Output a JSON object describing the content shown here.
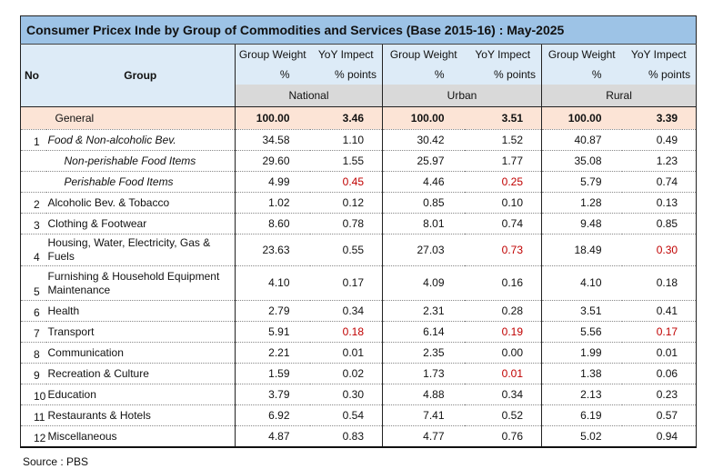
{
  "title": "Consumer Pricex Inde by Group of Commodities and Services  (Base 2015-16) : May-2025",
  "headers": {
    "no": "No",
    "group": "Group",
    "weight_top": "Group Weight",
    "weight_bottom": "%",
    "yoy_top": "YoY Impect",
    "yoy_bottom": "% points",
    "regions": [
      "National",
      "Urban",
      "Rural"
    ]
  },
  "colors": {
    "title_bg": "#9dc3e6",
    "header_bg": "#ddebf7",
    "general_bg": "#fce4d6",
    "negative_text": "#c00000"
  },
  "rows": [
    {
      "no": "",
      "group": "General",
      "style": "general",
      "values": [
        "100.00",
        "3.46",
        "100.00",
        "3.51",
        "100.00",
        "3.39"
      ],
      "red": []
    },
    {
      "no": "1",
      "group": "Food & Non-alcoholic Bev.",
      "style": "italic",
      "values": [
        "34.58",
        "1.10",
        "30.42",
        "1.52",
        "40.87",
        "0.49"
      ],
      "red": []
    },
    {
      "no": "",
      "group": "Non-perishable Food Items",
      "style": "sub",
      "values": [
        "29.60",
        "1.55",
        "25.97",
        "1.77",
        "35.08",
        "1.23"
      ],
      "red": []
    },
    {
      "no": "",
      "group": "Perishable Food Items",
      "style": "sub",
      "values": [
        "4.99",
        "0.45",
        "4.46",
        "0.25",
        "5.79",
        "0.74"
      ],
      "red": [
        1,
        3
      ]
    },
    {
      "no": "2",
      "group": "Alcoholic Bev. & Tobacco",
      "style": "",
      "values": [
        "1.02",
        "0.12",
        "0.85",
        "0.10",
        "1.28",
        "0.13"
      ],
      "red": []
    },
    {
      "no": "3",
      "group": "Clothing & Footwear",
      "style": "",
      "values": [
        "8.60",
        "0.78",
        "8.01",
        "0.74",
        "9.48",
        "0.85"
      ],
      "red": []
    },
    {
      "no": "4",
      "group": "Housing, Water, Electricity, Gas & Fuels",
      "style": "tall",
      "values": [
        "23.63",
        "0.55",
        "27.03",
        "0.73",
        "18.49",
        "0.30"
      ],
      "red": [
        3,
        5
      ]
    },
    {
      "no": "5",
      "group": "Furnishing & Household Equipment Maintenance",
      "style": "taller",
      "values": [
        "4.10",
        "0.17",
        "4.09",
        "0.16",
        "4.10",
        "0.18"
      ],
      "red": []
    },
    {
      "no": "6",
      "group": "Health",
      "style": "",
      "values": [
        "2.79",
        "0.34",
        "2.31",
        "0.28",
        "3.51",
        "0.41"
      ],
      "red": []
    },
    {
      "no": "7",
      "group": "Transport",
      "style": "",
      "values": [
        "5.91",
        "0.18",
        "6.14",
        "0.19",
        "5.56",
        "0.17"
      ],
      "red": [
        1,
        3,
        5
      ]
    },
    {
      "no": "8",
      "group": "Communication",
      "style": "",
      "values": [
        "2.21",
        "0.01",
        "2.35",
        "0.00",
        "1.99",
        "0.01"
      ],
      "red": []
    },
    {
      "no": "9",
      "group": "Recreation & Culture",
      "style": "",
      "values": [
        "1.59",
        "0.02",
        "1.73",
        "0.01",
        "1.38",
        "0.06"
      ],
      "red": [
        3
      ]
    },
    {
      "no": "10",
      "group": "Education",
      "style": "",
      "values": [
        "3.79",
        "0.30",
        "4.88",
        "0.34",
        "2.13",
        "0.23"
      ],
      "red": []
    },
    {
      "no": "11",
      "group": "Restaurants & Hotels",
      "style": "",
      "values": [
        "6.92",
        "0.54",
        "7.41",
        "0.52",
        "6.19",
        "0.57"
      ],
      "red": []
    },
    {
      "no": "12",
      "group": "Miscellaneous",
      "style": "",
      "values": [
        "4.87",
        "0.83",
        "4.77",
        "0.76",
        "5.02",
        "0.94"
      ],
      "red": []
    }
  ],
  "source": "Source : PBS"
}
